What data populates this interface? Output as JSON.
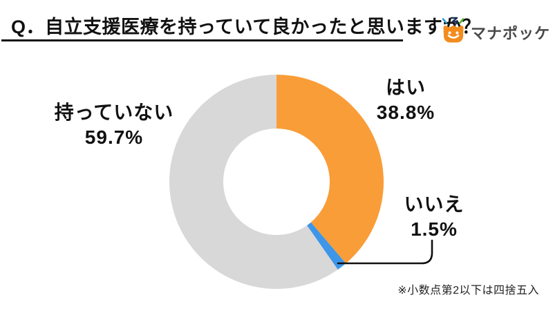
{
  "page": {
    "background": "#ffffff"
  },
  "header": {
    "title": "Q．自立支援医療を持っていて良かったと思いますか？",
    "underline_color": "#111111",
    "logo": {
      "text": "マナポッケ",
      "text_color": "#4a4a4a",
      "icon": "manapokke-pocket-icon",
      "icon_colors": {
        "pocket": "#F28C1E",
        "face": "#ffffff",
        "squiggle": "#1E3050",
        "spark_left": "#2E9BD6",
        "spark_right": "#5BB12F"
      }
    }
  },
  "chart_data": {
    "type": "pie",
    "subtype": "donut",
    "title": "Q．自立支援医療を持っていて良かったと思いますか？",
    "start_angle_deg": 0,
    "direction": "clockwise",
    "inner_radius_ratio": 0.497,
    "legend_position": "none",
    "labels": "outside",
    "segments": [
      {
        "label": "はい",
        "value": 38.8,
        "display": "38.8%",
        "color": "#F99D38"
      },
      {
        "label": "いいえ",
        "value": 1.5,
        "display": "1.5%",
        "color": "#3D96E8"
      },
      {
        "label": "持っていない",
        "value": 59.7,
        "display": "59.7%",
        "color": "#D8D8D8"
      }
    ]
  },
  "footnote": "※小数点第2以下は四捨五入"
}
